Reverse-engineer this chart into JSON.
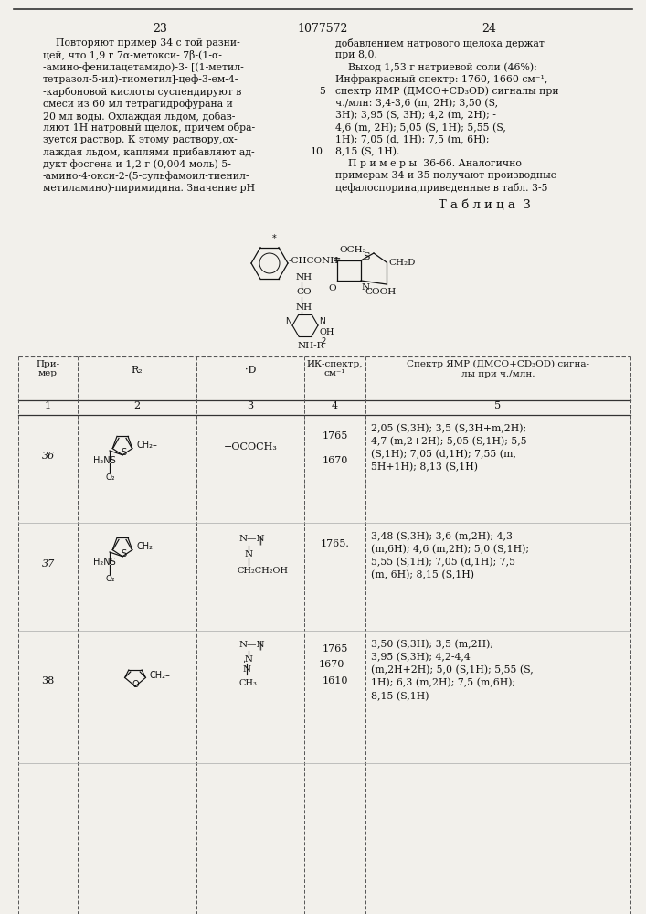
{
  "bg_color": "#e8e8e4",
  "page_color": "#f2f0eb",
  "text_color": "#111111",
  "page_num_left": "23",
  "page_num_center": "1077572",
  "page_num_right": "24",
  "left_col_lines": [
    "    Повторяют пример 34 с той разни-",
    "цей, что 1,9 г 7α-метокси- 7β-(1-α-",
    "-амино-фенилацетамидо)-3- [(1-метил-",
    "тетразол-5-ил)-тиометил]-цеф-3-ем-4-",
    "-карбоновой кислоты суспендируют в",
    "смеси из 60 мл тетрагидрофурана и",
    "20 мл воды. Охлаждая льдом, добав-",
    "ляют 1Н натровый щелок, причем обра-",
    "зуется раствор. К этому раствору,ох-",
    "лаждая льдом, каплями прибавляют ад-",
    "дукт фосгена и 1,2 г (0,004 моль) 5-",
    "-амино-4-окси-2-(5-сульфамоил-тиенил-",
    "метиламино)-пиримидина. Значение pH"
  ],
  "right_col_lines": [
    "добавлением натрового щелока держат",
    "при 8,0.",
    "    Выход 1,53 г натриевой соли (46%):",
    "Инфракрасный спектр: 1760, 1660 см⁻¹,",
    "спектр ЯМР (ДМСО+CD₃OD) сигналы при",
    "ч./млн: 3,4-3,6 (m, 2H); 3,50 (S,",
    "3H); 3,95 (S, 3H); 4,2 (m, 2H); -",
    "4,6 (m, 2H); 5,05 (S, 1H); 5,55 (S,",
    "1H); 7,05 (d, 1H); 7,5 (m, 6H);",
    "8,15 (S, 1H).",
    "    П р и м е р ы  36-66. Аналогично",
    "примерам 34 и 35 получают производные",
    "цефалоспорина,приведенные в табл. 3-5"
  ],
  "line_num_5_row": 4,
  "line_num_10_row": 9,
  "table_title": "Т а б л и ц а  3",
  "col_headers": [
    "При-\nмер",
    "R₂",
    "·D",
    "ИК-спектр,\nсм⁻¹",
    "Спектр ЯМР (ДМСО+CD₃OD) сигна-\nлы при ч./млн."
  ],
  "col_nums": [
    "1",
    "2",
    "3",
    "4",
    "5"
  ],
  "nmr36": "2,05 (S,3H); 3,5 (S,3H+m,2H);\n4,7 (m,2+2H); 5,05 (S,1H); 5,5\n(S,1H); 7,05 (d,1H); 7,55 (m,\n5H+1H); 8,13 (S,1H)",
  "nmr37": "3,48 (S,3H); 3,6 (m,2H); 4,3\n(m,6H); 4,6 (m,2H); 5,0 (S,1H);\n5,55 (S,1H); 7,05 (d,1H); 7,5\n(m, 6H); 8,15 (S,1H)",
  "nmr38": "3,50 (S,3H); 3,5 (m,2H);\n3,95 (S,3H); 4,2-4,4\n(m,2H+2H); 5,0 (S,1H); 5,55 (S,\n1H); 6,3 (m,2H); 7,5 (m,6H);\n8,15 (S,1H)"
}
